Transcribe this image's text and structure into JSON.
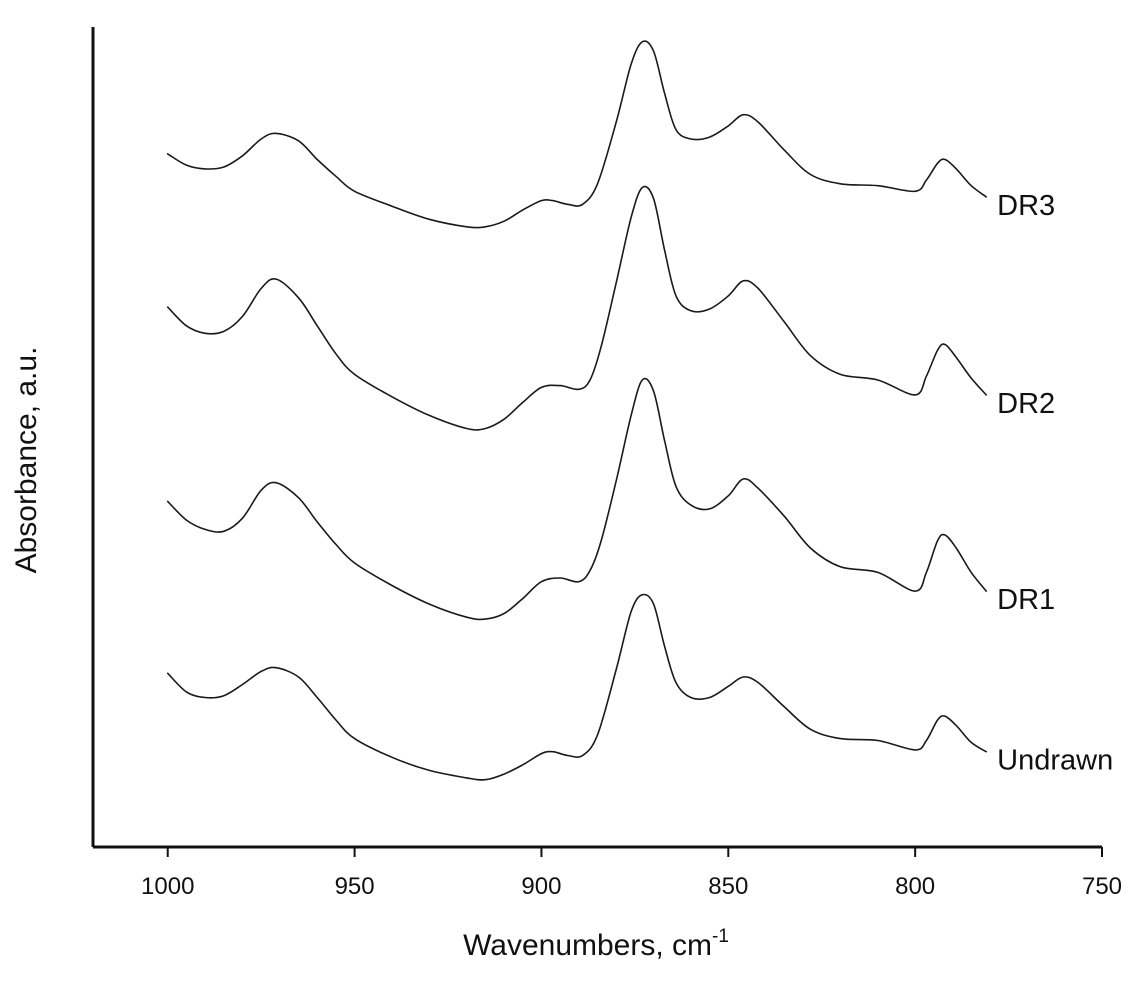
{
  "chart_data": {
    "type": "line",
    "xlabel": "Wavenumbers, cm",
    "xlabel_superscript": "-1",
    "ylabel": "Absorbance, a.u.",
    "xlim": [
      1020,
      750
    ],
    "x_reversed": true,
    "x_ticks": [
      1000,
      950,
      900,
      850,
      800,
      750
    ],
    "x_tick_labels": [
      "1000",
      "950",
      "900",
      "850",
      "800",
      "750"
    ],
    "y_ticks_shown": false,
    "ylim": [
      -0.2,
      4.2
    ],
    "grid": false,
    "legend": "none; series labelled at right end of each curve",
    "series": [
      {
        "name": "Undrawn",
        "offset": 0,
        "points": [
          [
            1000,
            0.73
          ],
          [
            995,
            0.63
          ],
          [
            990,
            0.6
          ],
          [
            985,
            0.61
          ],
          [
            980,
            0.67
          ],
          [
            975,
            0.74
          ],
          [
            971,
            0.76
          ],
          [
            965,
            0.71
          ],
          [
            960,
            0.6
          ],
          [
            955,
            0.48
          ],
          [
            950,
            0.38
          ],
          [
            940,
            0.28
          ],
          [
            930,
            0.21
          ],
          [
            920,
            0.17
          ],
          [
            915,
            0.16
          ],
          [
            910,
            0.19
          ],
          [
            905,
            0.24
          ],
          [
            900,
            0.3
          ],
          [
            897,
            0.31
          ],
          [
            893,
            0.29
          ],
          [
            889,
            0.29
          ],
          [
            885,
            0.4
          ],
          [
            880,
            0.75
          ],
          [
            876,
            1.06
          ],
          [
            873,
            1.15
          ],
          [
            870,
            1.1
          ],
          [
            867,
            0.87
          ],
          [
            864,
            0.68
          ],
          [
            860,
            0.6
          ],
          [
            855,
            0.6
          ],
          [
            850,
            0.66
          ],
          [
            846,
            0.71
          ],
          [
            842,
            0.68
          ],
          [
            835,
            0.55
          ],
          [
            828,
            0.43
          ],
          [
            820,
            0.38
          ],
          [
            810,
            0.37
          ],
          [
            800,
            0.32
          ],
          [
            797,
            0.37
          ],
          [
            794,
            0.48
          ],
          [
            792,
            0.5
          ],
          [
            789,
            0.45
          ],
          [
            785,
            0.36
          ],
          [
            781,
            0.31
          ]
        ]
      },
      {
        "name": "DR1",
        "offset": 1,
        "points": [
          [
            1000,
            0.65
          ],
          [
            995,
            0.55
          ],
          [
            990,
            0.5
          ],
          [
            985,
            0.49
          ],
          [
            980,
            0.56
          ],
          [
            975,
            0.71
          ],
          [
            971,
            0.75
          ],
          [
            965,
            0.67
          ],
          [
            960,
            0.54
          ],
          [
            955,
            0.42
          ],
          [
            950,
            0.32
          ],
          [
            940,
            0.2
          ],
          [
            930,
            0.1
          ],
          [
            920,
            0.03
          ],
          [
            915,
            0.02
          ],
          [
            910,
            0.05
          ],
          [
            905,
            0.13
          ],
          [
            900,
            0.22
          ],
          [
            895,
            0.24
          ],
          [
            890,
            0.22
          ],
          [
            887,
            0.28
          ],
          [
            884,
            0.44
          ],
          [
            880,
            0.76
          ],
          [
            876,
            1.11
          ],
          [
            873,
            1.3
          ],
          [
            870,
            1.24
          ],
          [
            867,
            0.97
          ],
          [
            864,
            0.73
          ],
          [
            860,
            0.63
          ],
          [
            855,
            0.61
          ],
          [
            850,
            0.68
          ],
          [
            846,
            0.77
          ],
          [
            842,
            0.72
          ],
          [
            835,
            0.57
          ],
          [
            828,
            0.4
          ],
          [
            820,
            0.3
          ],
          [
            810,
            0.27
          ],
          [
            800,
            0.17
          ],
          [
            797,
            0.27
          ],
          [
            794,
            0.44
          ],
          [
            792,
            0.47
          ],
          [
            789,
            0.4
          ],
          [
            785,
            0.27
          ],
          [
            781,
            0.17
          ]
        ]
      },
      {
        "name": "DR2",
        "offset": 2,
        "points": [
          [
            1000,
            0.69
          ],
          [
            995,
            0.59
          ],
          [
            990,
            0.55
          ],
          [
            985,
            0.56
          ],
          [
            980,
            0.64
          ],
          [
            975,
            0.79
          ],
          [
            971,
            0.84
          ],
          [
            965,
            0.74
          ],
          [
            960,
            0.59
          ],
          [
            955,
            0.44
          ],
          [
            950,
            0.33
          ],
          [
            940,
            0.21
          ],
          [
            930,
            0.11
          ],
          [
            920,
            0.04
          ],
          [
            915,
            0.04
          ],
          [
            910,
            0.09
          ],
          [
            905,
            0.18
          ],
          [
            900,
            0.26
          ],
          [
            895,
            0.27
          ],
          [
            890,
            0.25
          ],
          [
            887,
            0.3
          ],
          [
            884,
            0.48
          ],
          [
            880,
            0.82
          ],
          [
            876,
            1.17
          ],
          [
            873,
            1.33
          ],
          [
            870,
            1.27
          ],
          [
            867,
            0.99
          ],
          [
            864,
            0.75
          ],
          [
            860,
            0.67
          ],
          [
            855,
            0.68
          ],
          [
            850,
            0.75
          ],
          [
            846,
            0.83
          ],
          [
            842,
            0.79
          ],
          [
            835,
            0.61
          ],
          [
            828,
            0.43
          ],
          [
            820,
            0.33
          ],
          [
            810,
            0.3
          ],
          [
            800,
            0.22
          ],
          [
            797,
            0.32
          ],
          [
            794,
            0.46
          ],
          [
            792,
            0.49
          ],
          [
            789,
            0.42
          ],
          [
            785,
            0.31
          ],
          [
            781,
            0.22
          ]
        ]
      },
      {
        "name": "DR3",
        "offset": 3,
        "points": [
          [
            1000,
            0.51
          ],
          [
            995,
            0.45
          ],
          [
            990,
            0.43
          ],
          [
            985,
            0.44
          ],
          [
            980,
            0.5
          ],
          [
            975,
            0.59
          ],
          [
            971,
            0.62
          ],
          [
            965,
            0.58
          ],
          [
            960,
            0.48
          ],
          [
            955,
            0.39
          ],
          [
            950,
            0.31
          ],
          [
            940,
            0.23
          ],
          [
            930,
            0.16
          ],
          [
            920,
            0.12
          ],
          [
            915,
            0.12
          ],
          [
            910,
            0.15
          ],
          [
            905,
            0.21
          ],
          [
            900,
            0.26
          ],
          [
            897,
            0.26
          ],
          [
            893,
            0.24
          ],
          [
            889,
            0.24
          ],
          [
            885,
            0.35
          ],
          [
            880,
            0.68
          ],
          [
            876,
            0.99
          ],
          [
            873,
            1.11
          ],
          [
            870,
            1.06
          ],
          [
            867,
            0.83
          ],
          [
            864,
            0.64
          ],
          [
            860,
            0.59
          ],
          [
            855,
            0.6
          ],
          [
            850,
            0.66
          ],
          [
            846,
            0.72
          ],
          [
            842,
            0.68
          ],
          [
            835,
            0.53
          ],
          [
            828,
            0.4
          ],
          [
            820,
            0.35
          ],
          [
            810,
            0.34
          ],
          [
            800,
            0.31
          ],
          [
            797,
            0.37
          ],
          [
            794,
            0.46
          ],
          [
            792,
            0.48
          ],
          [
            789,
            0.43
          ],
          [
            785,
            0.34
          ],
          [
            781,
            0.28
          ]
        ]
      }
    ]
  }
}
